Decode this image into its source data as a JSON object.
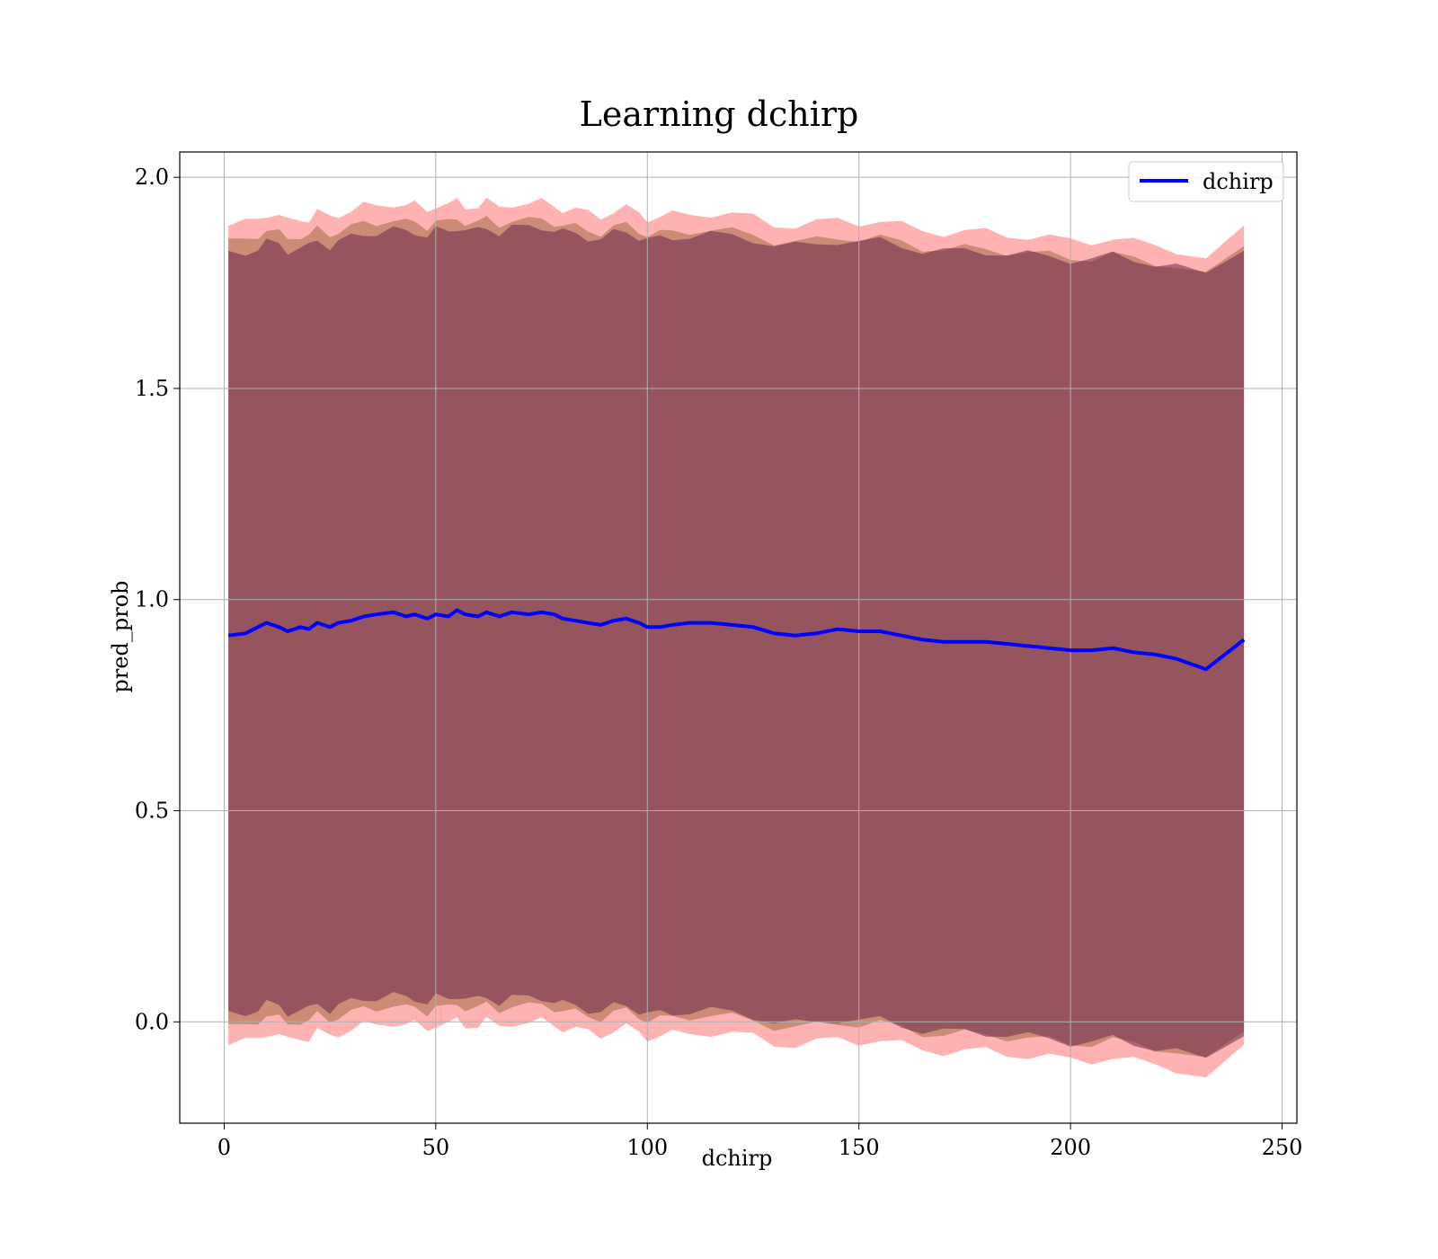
{
  "chart_data": {
    "type": "line",
    "title": "Learning dchirp",
    "xlabel": "dchirp",
    "ylabel": "pred_prob",
    "xlim": [
      -10.5,
      253.5
    ],
    "ylim": [
      -0.24,
      2.06
    ],
    "xticks": [
      "0",
      "50",
      "100",
      "150",
      "200",
      "250"
    ],
    "xtick_values": [
      0,
      50,
      100,
      150,
      200,
      250
    ],
    "yticks": [
      "0.0",
      "0.5",
      "1.0",
      "1.5",
      "2.0"
    ],
    "ytick_values": [
      0.0,
      0.5,
      1.0,
      1.5,
      2.0
    ],
    "grid": true,
    "legend_position": "top-right",
    "series": [
      {
        "name": "dchirp",
        "color": "#0000ff",
        "x": [
          1,
          5,
          8,
          10,
          13,
          15,
          18,
          20,
          22,
          25,
          27,
          30,
          33,
          36,
          40,
          43,
          45,
          48,
          50,
          53,
          55,
          57,
          60,
          62,
          65,
          68,
          72,
          75,
          78,
          80,
          83,
          86,
          89,
          92,
          95,
          98,
          100,
          103,
          106,
          110,
          115,
          120,
          125,
          130,
          135,
          140,
          145,
          150,
          155,
          160,
          165,
          170,
          175,
          180,
          185,
          190,
          195,
          200,
          205,
          210,
          215,
          220,
          225,
          232,
          241
        ],
        "y": [
          0.915,
          0.92,
          0.935,
          0.945,
          0.935,
          0.925,
          0.935,
          0.93,
          0.945,
          0.935,
          0.945,
          0.95,
          0.96,
          0.965,
          0.97,
          0.96,
          0.965,
          0.955,
          0.965,
          0.96,
          0.975,
          0.965,
          0.96,
          0.97,
          0.96,
          0.97,
          0.965,
          0.97,
          0.965,
          0.955,
          0.95,
          0.945,
          0.94,
          0.95,
          0.955,
          0.945,
          0.935,
          0.935,
          0.94,
          0.945,
          0.945,
          0.94,
          0.935,
          0.92,
          0.915,
          0.92,
          0.93,
          0.925,
          0.925,
          0.915,
          0.905,
          0.9,
          0.9,
          0.9,
          0.895,
          0.89,
          0.885,
          0.88,
          0.88,
          0.885,
          0.875,
          0.87,
          0.86,
          0.835,
          0.905
        ]
      }
    ],
    "bands": [
      {
        "color": "#ff0000",
        "opacity": 0.3,
        "upper_offset": 0.97,
        "lower_offset": 0.97,
        "end_upper_offset": 0.97,
        "end_lower_offset": 0.97
      },
      {
        "color": "#8b5a2b",
        "opacity": 0.45,
        "upper_offset": 0.93,
        "lower_offset": 0.93,
        "end_upper_offset": 0.93,
        "end_lower_offset": 0.93
      },
      {
        "color": "#6b2a4a",
        "opacity": 0.55,
        "upper_offset": 0.9,
        "lower_offset": 0.9,
        "end_upper_offset": 0.93,
        "end_lower_offset": 0.93
      }
    ]
  }
}
